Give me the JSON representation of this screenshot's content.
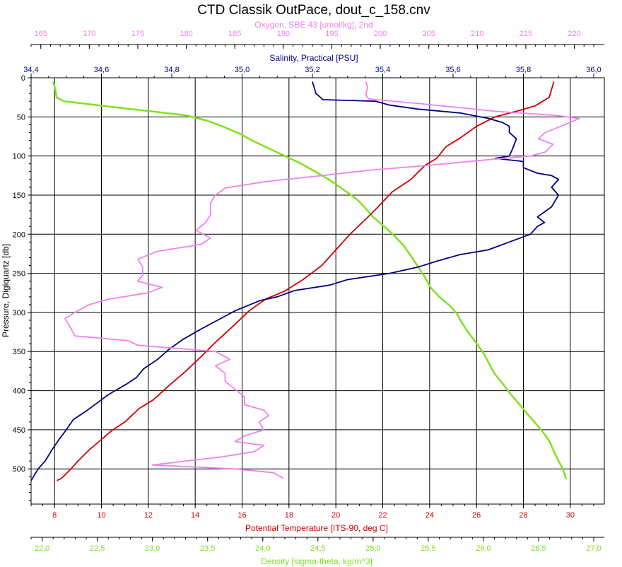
{
  "chart_data": {
    "type": "line",
    "title": "CTD Classik OutPace, dout_c_158.cnv",
    "y_axis": {
      "label": "Pressure, Digiquartz [db]",
      "range": [
        0,
        545
      ],
      "inverted": true,
      "ticks": [
        "0",
        "50",
        "100",
        "150",
        "200",
        "250",
        "300",
        "350",
        "400",
        "450",
        "500"
      ]
    },
    "grid": true,
    "axes": {
      "oxygen": {
        "label": "Oxygen, SBE 43 [umol/kg], 2nd",
        "position": "top-outer",
        "color": "#ee82ee",
        "range": [
          164,
          222
        ],
        "ticks": [
          "165",
          "170",
          "175",
          "180",
          "185",
          "190",
          "195",
          "200",
          "205",
          "210",
          "215",
          "220"
        ]
      },
      "salinity": {
        "label": "Salinity, Practical [PSU]",
        "position": "top-inner",
        "color": "#000080",
        "range": [
          34.4,
          36.0
        ],
        "ticks": [
          "34,4",
          "34,6",
          "34,8",
          "35,0",
          "35,2",
          "35,4",
          "35,6",
          "35,8",
          "36,0"
        ]
      },
      "temperature": {
        "label": "Potential Temperature [ITS-90, deg C]",
        "position": "bottom-inner",
        "color": "#cc0000",
        "range": [
          7,
          31
        ],
        "ticks": [
          "8",
          "10",
          "12",
          "14",
          "16",
          "18",
          "20",
          "22",
          "24",
          "26",
          "28",
          "30"
        ]
      },
      "density": {
        "label": "Density [sigma-theta, kg/m^3]",
        "position": "bottom-outer",
        "color": "#80e020",
        "range": [
          21.9,
          27.0
        ],
        "ticks": [
          "22,0",
          "22,5",
          "23,0",
          "23,5",
          "24,0",
          "24,5",
          "25,0",
          "25,5",
          "26,0",
          "26,5",
          "27,0"
        ]
      }
    },
    "series": [
      {
        "key": "density",
        "color": "#80e020",
        "points": [
          [
            22.1,
            5
          ],
          [
            22.12,
            15
          ],
          [
            22.13,
            25
          ],
          [
            22.2,
            30
          ],
          [
            22.5,
            35
          ],
          [
            22.8,
            40
          ],
          [
            23.0,
            43
          ],
          [
            23.3,
            48
          ],
          [
            23.5,
            55
          ],
          [
            23.65,
            63
          ],
          [
            23.8,
            72
          ],
          [
            23.9,
            80
          ],
          [
            24.05,
            90
          ],
          [
            24.2,
            100
          ],
          [
            24.35,
            110
          ],
          [
            24.5,
            122
          ],
          [
            24.62,
            132
          ],
          [
            24.75,
            145
          ],
          [
            24.85,
            155
          ],
          [
            24.92,
            165
          ],
          [
            25.0,
            178
          ],
          [
            25.1,
            190
          ],
          [
            25.2,
            203
          ],
          [
            25.28,
            215
          ],
          [
            25.33,
            225
          ],
          [
            25.4,
            240
          ],
          [
            25.47,
            255
          ],
          [
            25.52,
            268
          ],
          [
            25.6,
            280
          ],
          [
            25.7,
            292
          ],
          [
            25.76,
            302
          ],
          [
            25.8,
            312
          ],
          [
            25.86,
            325
          ],
          [
            25.93,
            338
          ],
          [
            26.0,
            352
          ],
          [
            26.05,
            365
          ],
          [
            26.1,
            378
          ],
          [
            26.18,
            392
          ],
          [
            26.25,
            405
          ],
          [
            26.33,
            418
          ],
          [
            26.4,
            430
          ],
          [
            26.48,
            443
          ],
          [
            26.55,
            455
          ],
          [
            26.6,
            465
          ],
          [
            26.63,
            475
          ],
          [
            26.68,
            490
          ],
          [
            26.72,
            500
          ],
          [
            26.75,
            513
          ]
        ]
      },
      {
        "key": "temperature",
        "color": "#cc0000",
        "points": [
          [
            29.3,
            5
          ],
          [
            29.1,
            25
          ],
          [
            28.5,
            36
          ],
          [
            27.8,
            42
          ],
          [
            26.8,
            50
          ],
          [
            26.0,
            62
          ],
          [
            25.3,
            77
          ],
          [
            24.7,
            88
          ],
          [
            24.3,
            103
          ],
          [
            23.8,
            112
          ],
          [
            23.2,
            130
          ],
          [
            22.4,
            146
          ],
          [
            21.8,
            165
          ],
          [
            21.3,
            180
          ],
          [
            20.6,
            200
          ],
          [
            20.0,
            220
          ],
          [
            19.4,
            240
          ],
          [
            18.6,
            258
          ],
          [
            17.8,
            273
          ],
          [
            17.0,
            283
          ],
          [
            16.3,
            298
          ],
          [
            15.6,
            318
          ],
          [
            14.8,
            340
          ],
          [
            14.2,
            358
          ],
          [
            13.6,
            375
          ],
          [
            12.9,
            393
          ],
          [
            12.2,
            412
          ],
          [
            11.6,
            423
          ],
          [
            11.0,
            440
          ],
          [
            10.4,
            452
          ],
          [
            9.9,
            465
          ],
          [
            9.5,
            475
          ],
          [
            9.0,
            490
          ],
          [
            8.7,
            500
          ],
          [
            8.3,
            512
          ],
          [
            8.1,
            515
          ]
        ]
      },
      {
        "key": "salinity",
        "color": "#000080",
        "points": [
          [
            35.2,
            5
          ],
          [
            35.21,
            20
          ],
          [
            35.23,
            28
          ],
          [
            35.38,
            30
          ],
          [
            35.42,
            35
          ],
          [
            35.5,
            40
          ],
          [
            35.62,
            45
          ],
          [
            35.7,
            52
          ],
          [
            35.74,
            57
          ],
          [
            35.76,
            62
          ],
          [
            35.76,
            70
          ],
          [
            35.78,
            78
          ],
          [
            35.77,
            90
          ],
          [
            35.76,
            100
          ],
          [
            35.72,
            103
          ],
          [
            35.8,
            107
          ],
          [
            35.8,
            115
          ],
          [
            35.84,
            122
          ],
          [
            35.88,
            125
          ],
          [
            35.9,
            130
          ],
          [
            35.88,
            140
          ],
          [
            35.9,
            150
          ],
          [
            35.88,
            165
          ],
          [
            35.84,
            178
          ],
          [
            35.86,
            185
          ],
          [
            35.84,
            190
          ],
          [
            35.82,
            200
          ],
          [
            35.76,
            210
          ],
          [
            35.7,
            220
          ],
          [
            35.62,
            226
          ],
          [
            35.55,
            235
          ],
          [
            35.5,
            242
          ],
          [
            35.42,
            250
          ],
          [
            35.3,
            258
          ],
          [
            35.25,
            265
          ],
          [
            35.15,
            272
          ],
          [
            35.1,
            280
          ],
          [
            35.05,
            285
          ],
          [
            34.98,
            298
          ],
          [
            34.93,
            310
          ],
          [
            34.88,
            322
          ],
          [
            34.83,
            335
          ],
          [
            34.79,
            348
          ],
          [
            34.76,
            360
          ],
          [
            34.72,
            372
          ],
          [
            34.7,
            383
          ],
          [
            34.67,
            392
          ],
          [
            34.62,
            405
          ],
          [
            34.59,
            415
          ],
          [
            34.56,
            425
          ],
          [
            34.52,
            437
          ],
          [
            34.5,
            450
          ],
          [
            34.48,
            462
          ],
          [
            34.46,
            475
          ],
          [
            34.44,
            490
          ],
          [
            34.42,
            500
          ],
          [
            34.4,
            515
          ]
        ]
      },
      {
        "key": "oxygen",
        "color": "#ee82ee",
        "points": [
          [
            198.5,
            5
          ],
          [
            198.7,
            12
          ],
          [
            198.5,
            22
          ],
          [
            198.8,
            27
          ],
          [
            200.5,
            29
          ],
          [
            204,
            33
          ],
          [
            208,
            38
          ],
          [
            212,
            43
          ],
          [
            218,
            48
          ],
          [
            220.5,
            52
          ],
          [
            219,
            60
          ],
          [
            217,
            70
          ],
          [
            216.3,
            78
          ],
          [
            217.8,
            85
          ],
          [
            217,
            95
          ],
          [
            215.5,
            100
          ],
          [
            210,
            106
          ],
          [
            205,
            112
          ],
          [
            199,
            118
          ],
          [
            194,
            125
          ],
          [
            188,
            133
          ],
          [
            184,
            141
          ],
          [
            183,
            150
          ],
          [
            182.5,
            160
          ],
          [
            182.5,
            175
          ],
          [
            182,
            185
          ],
          [
            181,
            195
          ],
          [
            182.5,
            205
          ],
          [
            181.5,
            213
          ],
          [
            177,
            222
          ],
          [
            175,
            232
          ],
          [
            175.5,
            242
          ],
          [
            175.5,
            252
          ],
          [
            175,
            260
          ],
          [
            177.5,
            268
          ],
          [
            176,
            275
          ],
          [
            172,
            283
          ],
          [
            170,
            290
          ],
          [
            168.5,
            300
          ],
          [
            167.5,
            308
          ],
          [
            168,
            318
          ],
          [
            168.5,
            330
          ],
          [
            174,
            336
          ],
          [
            175,
            342
          ],
          [
            178,
            345
          ],
          [
            183,
            350
          ],
          [
            184.5,
            360
          ],
          [
            183,
            368
          ],
          [
            184,
            378
          ],
          [
            184,
            388
          ],
          [
            185,
            398
          ],
          [
            186,
            408
          ],
          [
            186,
            418
          ],
          [
            188,
            425
          ],
          [
            188.5,
            432
          ],
          [
            187.5,
            440
          ],
          [
            188,
            450
          ],
          [
            186,
            458
          ],
          [
            185,
            465
          ],
          [
            188,
            470
          ],
          [
            187,
            478
          ],
          [
            183.5,
            485
          ],
          [
            180,
            490
          ],
          [
            176.5,
            495
          ],
          [
            185,
            500
          ],
          [
            189,
            505
          ],
          [
            190,
            512
          ]
        ]
      }
    ]
  }
}
